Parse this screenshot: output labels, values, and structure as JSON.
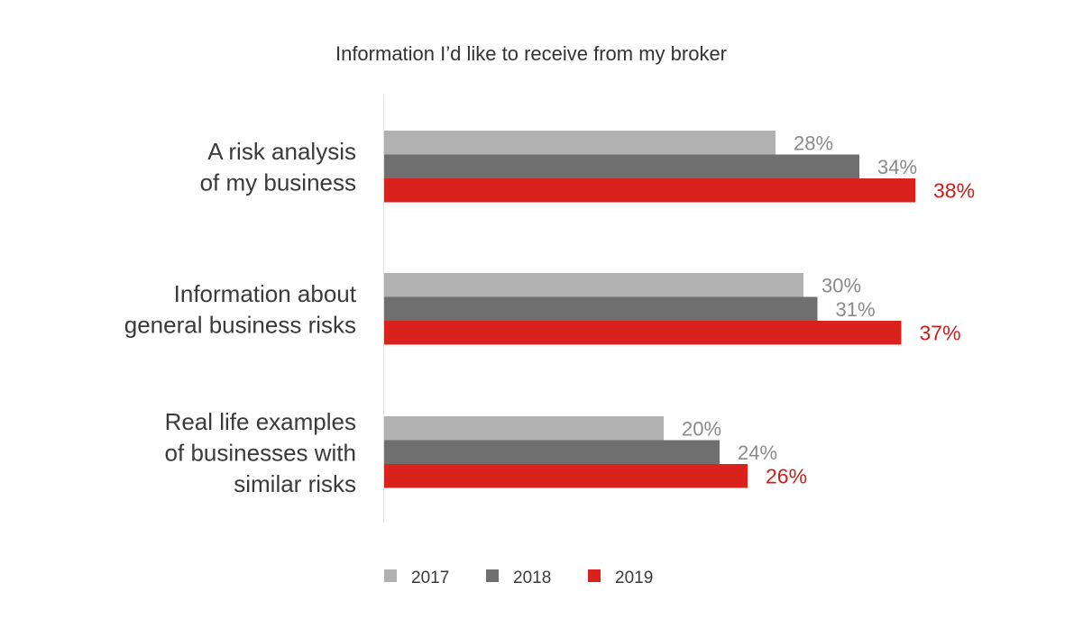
{
  "chart_data": {
    "type": "bar",
    "orientation": "horizontal",
    "title": "Information I’d like to receive from my broker",
    "categories": [
      [
        "A risk analysis",
        "of my business"
      ],
      [
        "Information about",
        "general business risks"
      ],
      [
        "Real life examples",
        "of businesses with",
        "similar risks"
      ]
    ],
    "series": [
      {
        "name": "2017",
        "color": "#b1b1b1",
        "label_color": "#8a8a8a",
        "values": [
          28,
          30,
          20
        ]
      },
      {
        "name": "2018",
        "color": "#6f6f6f",
        "label_color": "#8a8a8a",
        "values": [
          34,
          31,
          24
        ]
      },
      {
        "name": "2019",
        "color": "#d9221c",
        "label_color": "#c8201b",
        "values": [
          38,
          37,
          26
        ]
      }
    ],
    "value_suffix": "%",
    "legend_position": "bottom-center",
    "grid": false
  }
}
